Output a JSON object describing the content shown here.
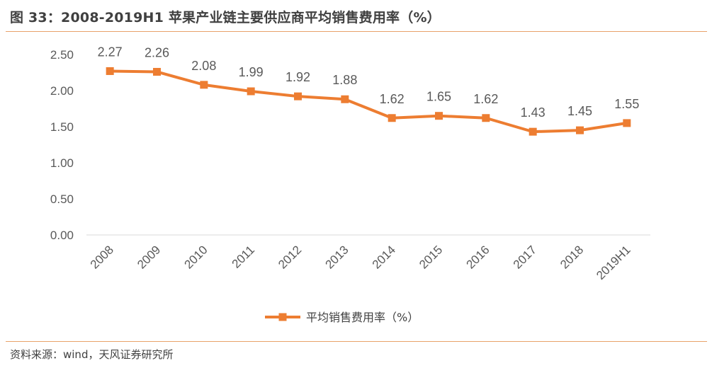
{
  "header": {
    "title": "图 33：2008-2019H1 苹果产业链主要供应商平均销售费用率（%）"
  },
  "footer": {
    "source": "资料来源：wind，天风证券研究所"
  },
  "colors": {
    "series": "#ed7d31",
    "rule": "#e8a26a",
    "axis": "#d9d9d9",
    "text": "#595959"
  },
  "chart_data": {
    "type": "line",
    "title": "",
    "xlabel": "",
    "ylabel": "",
    "ylim": [
      0,
      2.5
    ],
    "yticks": [
      "0.00",
      "0.50",
      "1.00",
      "1.50",
      "2.00",
      "2.50"
    ],
    "categories": [
      "2008",
      "2009",
      "2010",
      "2011",
      "2012",
      "2013",
      "2014",
      "2015",
      "2016",
      "2017",
      "2018",
      "2019H1"
    ],
    "series": [
      {
        "name": "平均销售费用率（%）",
        "values": [
          2.27,
          2.26,
          2.08,
          1.99,
          1.92,
          1.88,
          1.62,
          1.65,
          1.62,
          1.43,
          1.45,
          1.55
        ],
        "labels": [
          "2.27",
          "2.26",
          "2.08",
          "1.99",
          "1.92",
          "1.88",
          "1.62",
          "1.65",
          "1.62",
          "1.43",
          "1.45",
          "1.55"
        ],
        "marker": "square"
      }
    ],
    "grid": false,
    "legend": "bottom-center"
  }
}
